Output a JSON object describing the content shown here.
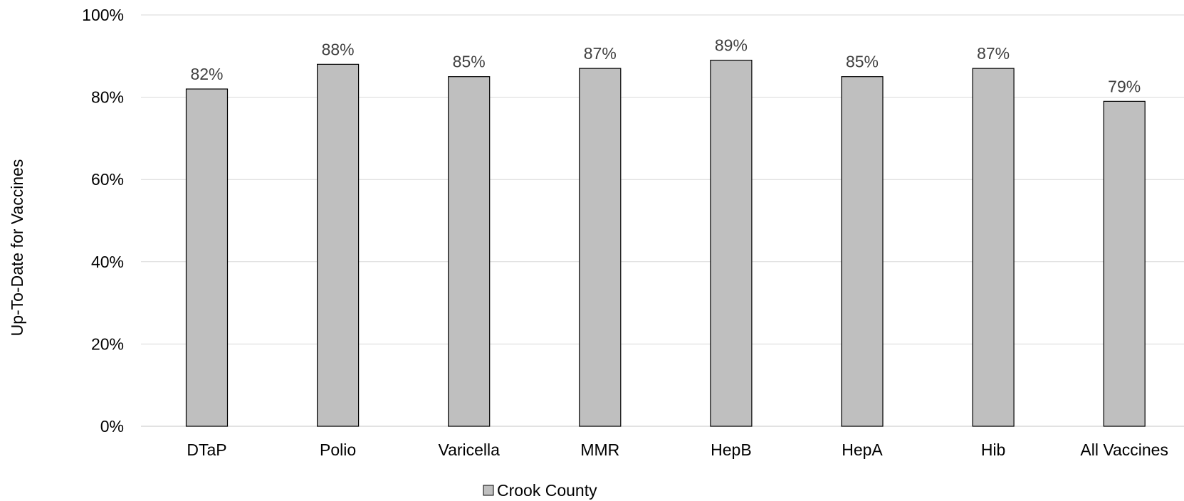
{
  "chart_data": {
    "type": "bar",
    "categories": [
      "DTaP",
      "Polio",
      "Varicella",
      "MMR",
      "HepB",
      "HepA",
      "Hib",
      "All Vaccines"
    ],
    "series": [
      {
        "name": "Crook County",
        "values": [
          0.82,
          0.88,
          0.85,
          0.87,
          0.89,
          0.85,
          0.87,
          0.79
        ],
        "labels": [
          "82%",
          "88%",
          "85%",
          "87%",
          "89%",
          "85%",
          "87%",
          "79%"
        ],
        "color": "#bfbfbf"
      }
    ],
    "title": "",
    "xlabel": "",
    "ylabel": "Up-To-Date for Vaccines",
    "ylim": [
      0,
      1
    ],
    "yticks": [
      0,
      0.2,
      0.4,
      0.6,
      0.8,
      1.0
    ],
    "ytick_labels": [
      "0%",
      "20%",
      "40%",
      "60%",
      "80%",
      "100%"
    ],
    "grid": true,
    "legend": "bottom-center"
  }
}
